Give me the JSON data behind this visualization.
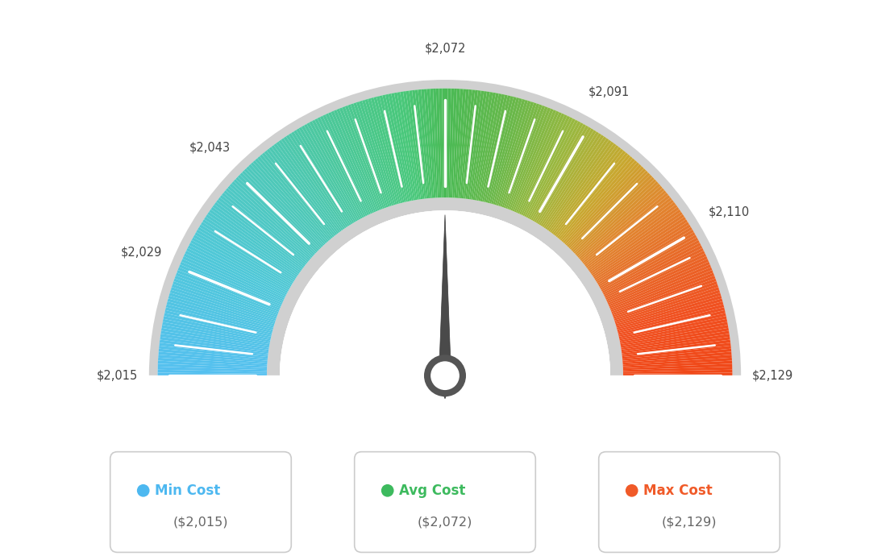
{
  "min_val": 2015,
  "max_val": 2129,
  "avg_val": 2072,
  "tick_labels": [
    "$2,015",
    "$2,029",
    "$2,043",
    "$2,072",
    "$2,091",
    "$2,110",
    "$2,129"
  ],
  "tick_values": [
    2015,
    2029,
    2043,
    2072,
    2091,
    2110,
    2129
  ],
  "legend_min_label": "Min Cost",
  "legend_avg_label": "Avg Cost",
  "legend_max_label": "Max Cost",
  "legend_min_value": "($2,015)",
  "legend_avg_value": "($2,072)",
  "legend_max_value": "($2,129)",
  "color_min": "#4db8f0",
  "color_avg": "#3dba5e",
  "color_max": "#f05a28",
  "background_color": "#ffffff",
  "gauge_colors": [
    [
      0.0,
      "#55c0f0"
    ],
    [
      0.15,
      "#50c8d8"
    ],
    [
      0.3,
      "#4ec8b0"
    ],
    [
      0.45,
      "#4ac87a"
    ],
    [
      0.5,
      "#4aba55"
    ],
    [
      0.58,
      "#6ab84a"
    ],
    [
      0.65,
      "#9ab840"
    ],
    [
      0.72,
      "#c8a830"
    ],
    [
      0.78,
      "#e08830"
    ],
    [
      0.85,
      "#e86828"
    ],
    [
      0.92,
      "#f05020"
    ],
    [
      1.0,
      "#f04818"
    ]
  ]
}
